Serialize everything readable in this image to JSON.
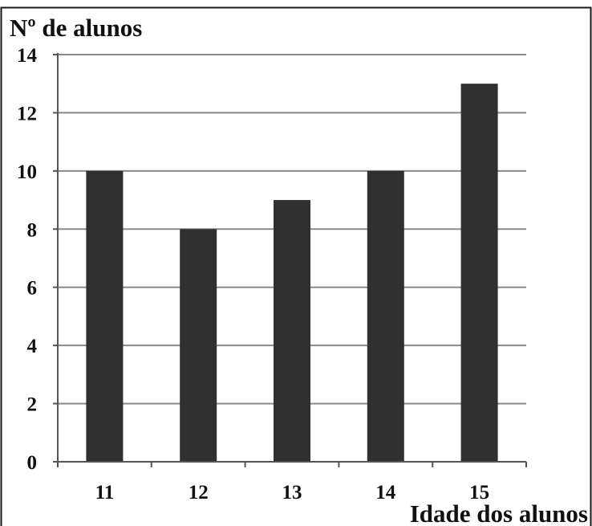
{
  "chart_data": {
    "type": "bar",
    "ylabel": "Nº de alunos",
    "xlabel": "Idade dos alunos",
    "categories": [
      "11",
      "12",
      "13",
      "14",
      "15"
    ],
    "values": [
      10,
      8,
      9,
      10,
      13
    ],
    "ylim": [
      0,
      14
    ],
    "yticks": [
      0,
      2,
      4,
      6,
      8,
      10,
      12,
      14
    ],
    "grid": true,
    "bar_color": "#303030",
    "grid_color": "#8a8a8a"
  }
}
